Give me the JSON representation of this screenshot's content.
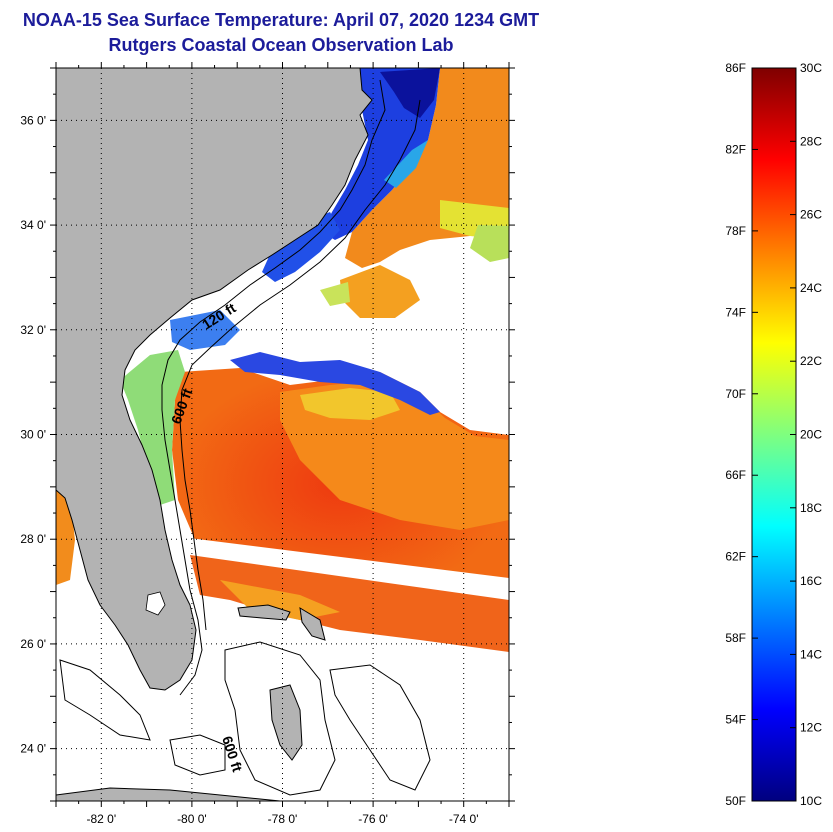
{
  "title": {
    "line1": "NOAA-15 Sea Surface Temperature:  April 07, 2020 1234 GMT",
    "line2": "Rutgers Coastal Ocean Observation Lab"
  },
  "map": {
    "lon_range": [
      -83,
      -73
    ],
    "lat_range": [
      23,
      37
    ],
    "lon_ticks": [
      {
        "lon": -82,
        "label": "-82 0'"
      },
      {
        "lon": -80,
        "label": "-80 0'"
      },
      {
        "lon": -78,
        "label": "-78 0'"
      },
      {
        "lon": -76,
        "label": "-76 0'"
      },
      {
        "lon": -74,
        "label": "-74 0'"
      }
    ],
    "lat_ticks": [
      {
        "lat": 36,
        "label": "36 0'"
      },
      {
        "lat": 34,
        "label": "34 0'"
      },
      {
        "lat": 32,
        "label": "32 0'"
      },
      {
        "lat": 30,
        "label": "30 0'"
      },
      {
        "lat": 28,
        "label": "28 0'"
      },
      {
        "lat": 26,
        "label": "26 0'"
      },
      {
        "lat": 24,
        "label": "24 0'"
      }
    ],
    "grid": "dotted",
    "land_color": "#b3b3b3",
    "contour_labels": [
      "120 ft",
      "600 ft",
      "600 ft"
    ]
  },
  "colorbar": {
    "placement": "right",
    "range_c": [
      10,
      30
    ],
    "range_f": [
      50,
      86
    ],
    "fahrenheit_labels": [
      "86F",
      "82F",
      "78F",
      "74F",
      "70F",
      "66F",
      "62F",
      "58F",
      "54F",
      "50F"
    ],
    "celsius_labels": [
      "30C",
      "28C",
      "26C",
      "24C",
      "22C",
      "20C",
      "18C",
      "16C",
      "14C",
      "12C",
      "10C"
    ],
    "colors": [
      "#00007f",
      "#0000ff",
      "#007fff",
      "#00ffff",
      "#7fff7f",
      "#ffff00",
      "#ff7f00",
      "#ff0000",
      "#7f0000"
    ]
  }
}
